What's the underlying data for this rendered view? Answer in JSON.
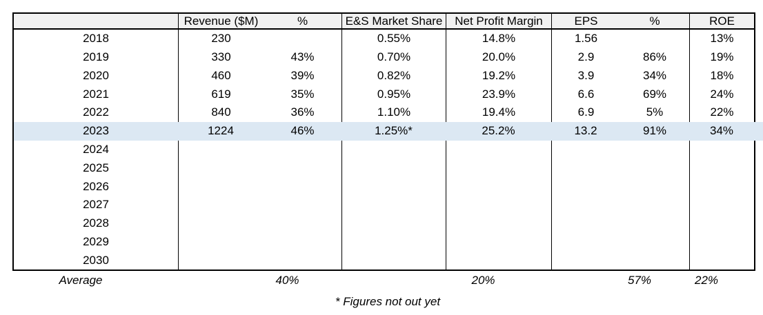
{
  "chart_data": {
    "type": "table",
    "title": "",
    "columns": [
      "",
      "Revenue ($M)",
      "%",
      "E&S Market Share",
      "Net Profit Margin",
      "EPS",
      "%",
      "ROE"
    ],
    "rows": [
      [
        "2018",
        "230",
        "",
        "0.55%",
        "14.8%",
        "1.56",
        "",
        "13%"
      ],
      [
        "2019",
        "330",
        "43%",
        "0.70%",
        "20.0%",
        "2.9",
        "86%",
        "19%"
      ],
      [
        "2020",
        "460",
        "39%",
        "0.82%",
        "19.2%",
        "3.9",
        "34%",
        "18%"
      ],
      [
        "2021",
        "619",
        "35%",
        "0.95%",
        "23.9%",
        "6.6",
        "69%",
        "24%"
      ],
      [
        "2022",
        "840",
        "36%",
        "1.10%",
        "19.4%",
        "6.9",
        "5%",
        "22%"
      ],
      [
        "2023",
        "1224",
        "46%",
        "1.25%*",
        "25.2%",
        "13.2",
        "91%",
        "34%"
      ],
      [
        "2024",
        "",
        "",
        "",
        "",
        "",
        "",
        ""
      ],
      [
        "2025",
        "",
        "",
        "",
        "",
        "",
        "",
        ""
      ],
      [
        "2026",
        "",
        "",
        "",
        "",
        "",
        "",
        ""
      ],
      [
        "2027",
        "",
        "",
        "",
        "",
        "",
        "",
        ""
      ],
      [
        "2028",
        "",
        "",
        "",
        "",
        "",
        "",
        ""
      ],
      [
        "2029",
        "",
        "",
        "",
        "",
        "",
        "",
        ""
      ],
      [
        "2030",
        "",
        "",
        "",
        "",
        "",
        "",
        ""
      ]
    ],
    "highlighted_row_year": "2023",
    "average_row": [
      "Average",
      "",
      "40%",
      "",
      "20%",
      "",
      "57%",
      "22%"
    ],
    "footnote": "* Figures not out yet"
  },
  "colors": {
    "highlight_row_bg": "#dce8f3",
    "header_bg": "#f1f1f1",
    "border": "#000000"
  }
}
